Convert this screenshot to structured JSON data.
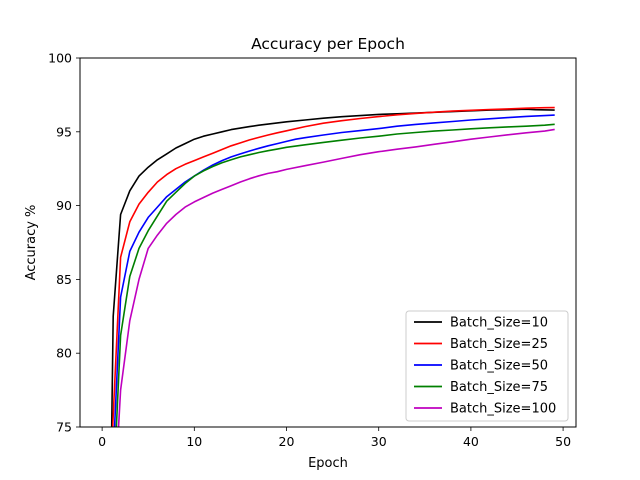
{
  "chart_data": {
    "type": "line",
    "title": "Accuracy per Epoch",
    "xlabel": "Epoch",
    "ylabel": "Accuracy %",
    "xlim": [
      -2.4,
      51.4
    ],
    "ylim": [
      75,
      100
    ],
    "xticks": [
      0,
      10,
      20,
      30,
      40,
      50
    ],
    "yticks": [
      75,
      80,
      85,
      90,
      95,
      100
    ],
    "grid": false,
    "legend_position": "lower-right",
    "series": [
      {
        "name": "Batch_Size=10",
        "color": "#000000",
        "x": [
          1,
          1.2,
          2,
          3,
          4,
          5,
          6,
          7,
          8,
          9,
          10,
          11,
          12,
          13,
          14,
          15,
          16,
          17,
          18,
          19,
          20,
          22,
          24,
          26,
          28,
          30,
          32,
          34,
          36,
          38,
          40,
          42,
          44,
          46,
          47,
          49
        ],
        "y": [
          73,
          82.5,
          89.4,
          91,
          92,
          92.6,
          93.1,
          93.5,
          93.9,
          94.2,
          94.5,
          94.7,
          94.85,
          95,
          95.15,
          95.25,
          95.35,
          95.45,
          95.52,
          95.6,
          95.68,
          95.8,
          95.92,
          96.02,
          96.1,
          96.18,
          96.22,
          96.27,
          96.32,
          96.37,
          96.42,
          96.47,
          96.5,
          96.53,
          96.5,
          96.48
        ]
      },
      {
        "name": "Batch_Size=25",
        "color": "#ff0000",
        "x": [
          1,
          2,
          3,
          4,
          5,
          6,
          7,
          8,
          9,
          10,
          11,
          12,
          13,
          14,
          15,
          16,
          17,
          18,
          19,
          20,
          22,
          24,
          26,
          28,
          30,
          32,
          34,
          36,
          38,
          40,
          42,
          44,
          46,
          48,
          49
        ],
        "y": [
          73,
          86.5,
          88.9,
          90.1,
          90.9,
          91.6,
          92.1,
          92.5,
          92.8,
          93.05,
          93.3,
          93.55,
          93.8,
          94.05,
          94.25,
          94.45,
          94.62,
          94.78,
          94.93,
          95.07,
          95.35,
          95.58,
          95.75,
          95.9,
          96.03,
          96.15,
          96.25,
          96.33,
          96.4,
          96.46,
          96.51,
          96.55,
          96.6,
          96.63,
          96.64
        ]
      },
      {
        "name": "Batch_Size=50",
        "color": "#0000ff",
        "x": [
          1.2,
          2,
          3,
          4,
          5,
          6,
          7,
          8,
          9,
          10,
          11,
          12,
          13,
          14,
          15,
          16,
          17,
          18,
          19,
          20,
          21,
          22,
          24,
          26,
          28,
          30,
          32,
          34,
          36,
          38,
          40,
          42,
          44,
          46,
          48,
          49
        ],
        "y": [
          73,
          83.8,
          86.9,
          88.2,
          89.2,
          89.9,
          90.6,
          91.1,
          91.6,
          92.0,
          92.4,
          92.75,
          93.05,
          93.3,
          93.5,
          93.7,
          93.88,
          94.05,
          94.2,
          94.35,
          94.5,
          94.6,
          94.78,
          94.95,
          95.08,
          95.22,
          95.38,
          95.5,
          95.6,
          95.7,
          95.8,
          95.88,
          95.96,
          96.04,
          96.1,
          96.13
        ]
      },
      {
        "name": "Batch_Size=75",
        "color": "#008000",
        "x": [
          1.4,
          2,
          3,
          4,
          5,
          6,
          7,
          8,
          9,
          10,
          11,
          12,
          13,
          14,
          15,
          16,
          17,
          18,
          19,
          20,
          22,
          24,
          26,
          28,
          30,
          32,
          34,
          36,
          38,
          40,
          42,
          44,
          46,
          48,
          49
        ],
        "y": [
          73,
          81.2,
          85.2,
          87.1,
          88.3,
          89.3,
          90.3,
          90.9,
          91.5,
          92.0,
          92.35,
          92.65,
          92.9,
          93.1,
          93.3,
          93.45,
          93.6,
          93.72,
          93.83,
          93.95,
          94.12,
          94.28,
          94.43,
          94.58,
          94.7,
          94.85,
          94.95,
          95.05,
          95.12,
          95.2,
          95.27,
          95.33,
          95.38,
          95.45,
          95.5
        ]
      },
      {
        "name": "Batch_Size=100",
        "color": "#bf00bf",
        "x": [
          1.6,
          2,
          3,
          4,
          5,
          6,
          7,
          8,
          9,
          10,
          11,
          12,
          13,
          14,
          15,
          16,
          17,
          18,
          19,
          20,
          22,
          24,
          26,
          28,
          30,
          32,
          34,
          36,
          38,
          40,
          42,
          44,
          46,
          48,
          49
        ],
        "y": [
          73,
          77.5,
          82.2,
          85.0,
          87.1,
          88.0,
          88.8,
          89.4,
          89.9,
          90.25,
          90.55,
          90.85,
          91.1,
          91.35,
          91.6,
          91.82,
          92.02,
          92.18,
          92.3,
          92.45,
          92.7,
          92.95,
          93.2,
          93.45,
          93.65,
          93.82,
          93.98,
          94.15,
          94.32,
          94.5,
          94.65,
          94.8,
          94.93,
          95.05,
          95.15
        ]
      }
    ]
  }
}
